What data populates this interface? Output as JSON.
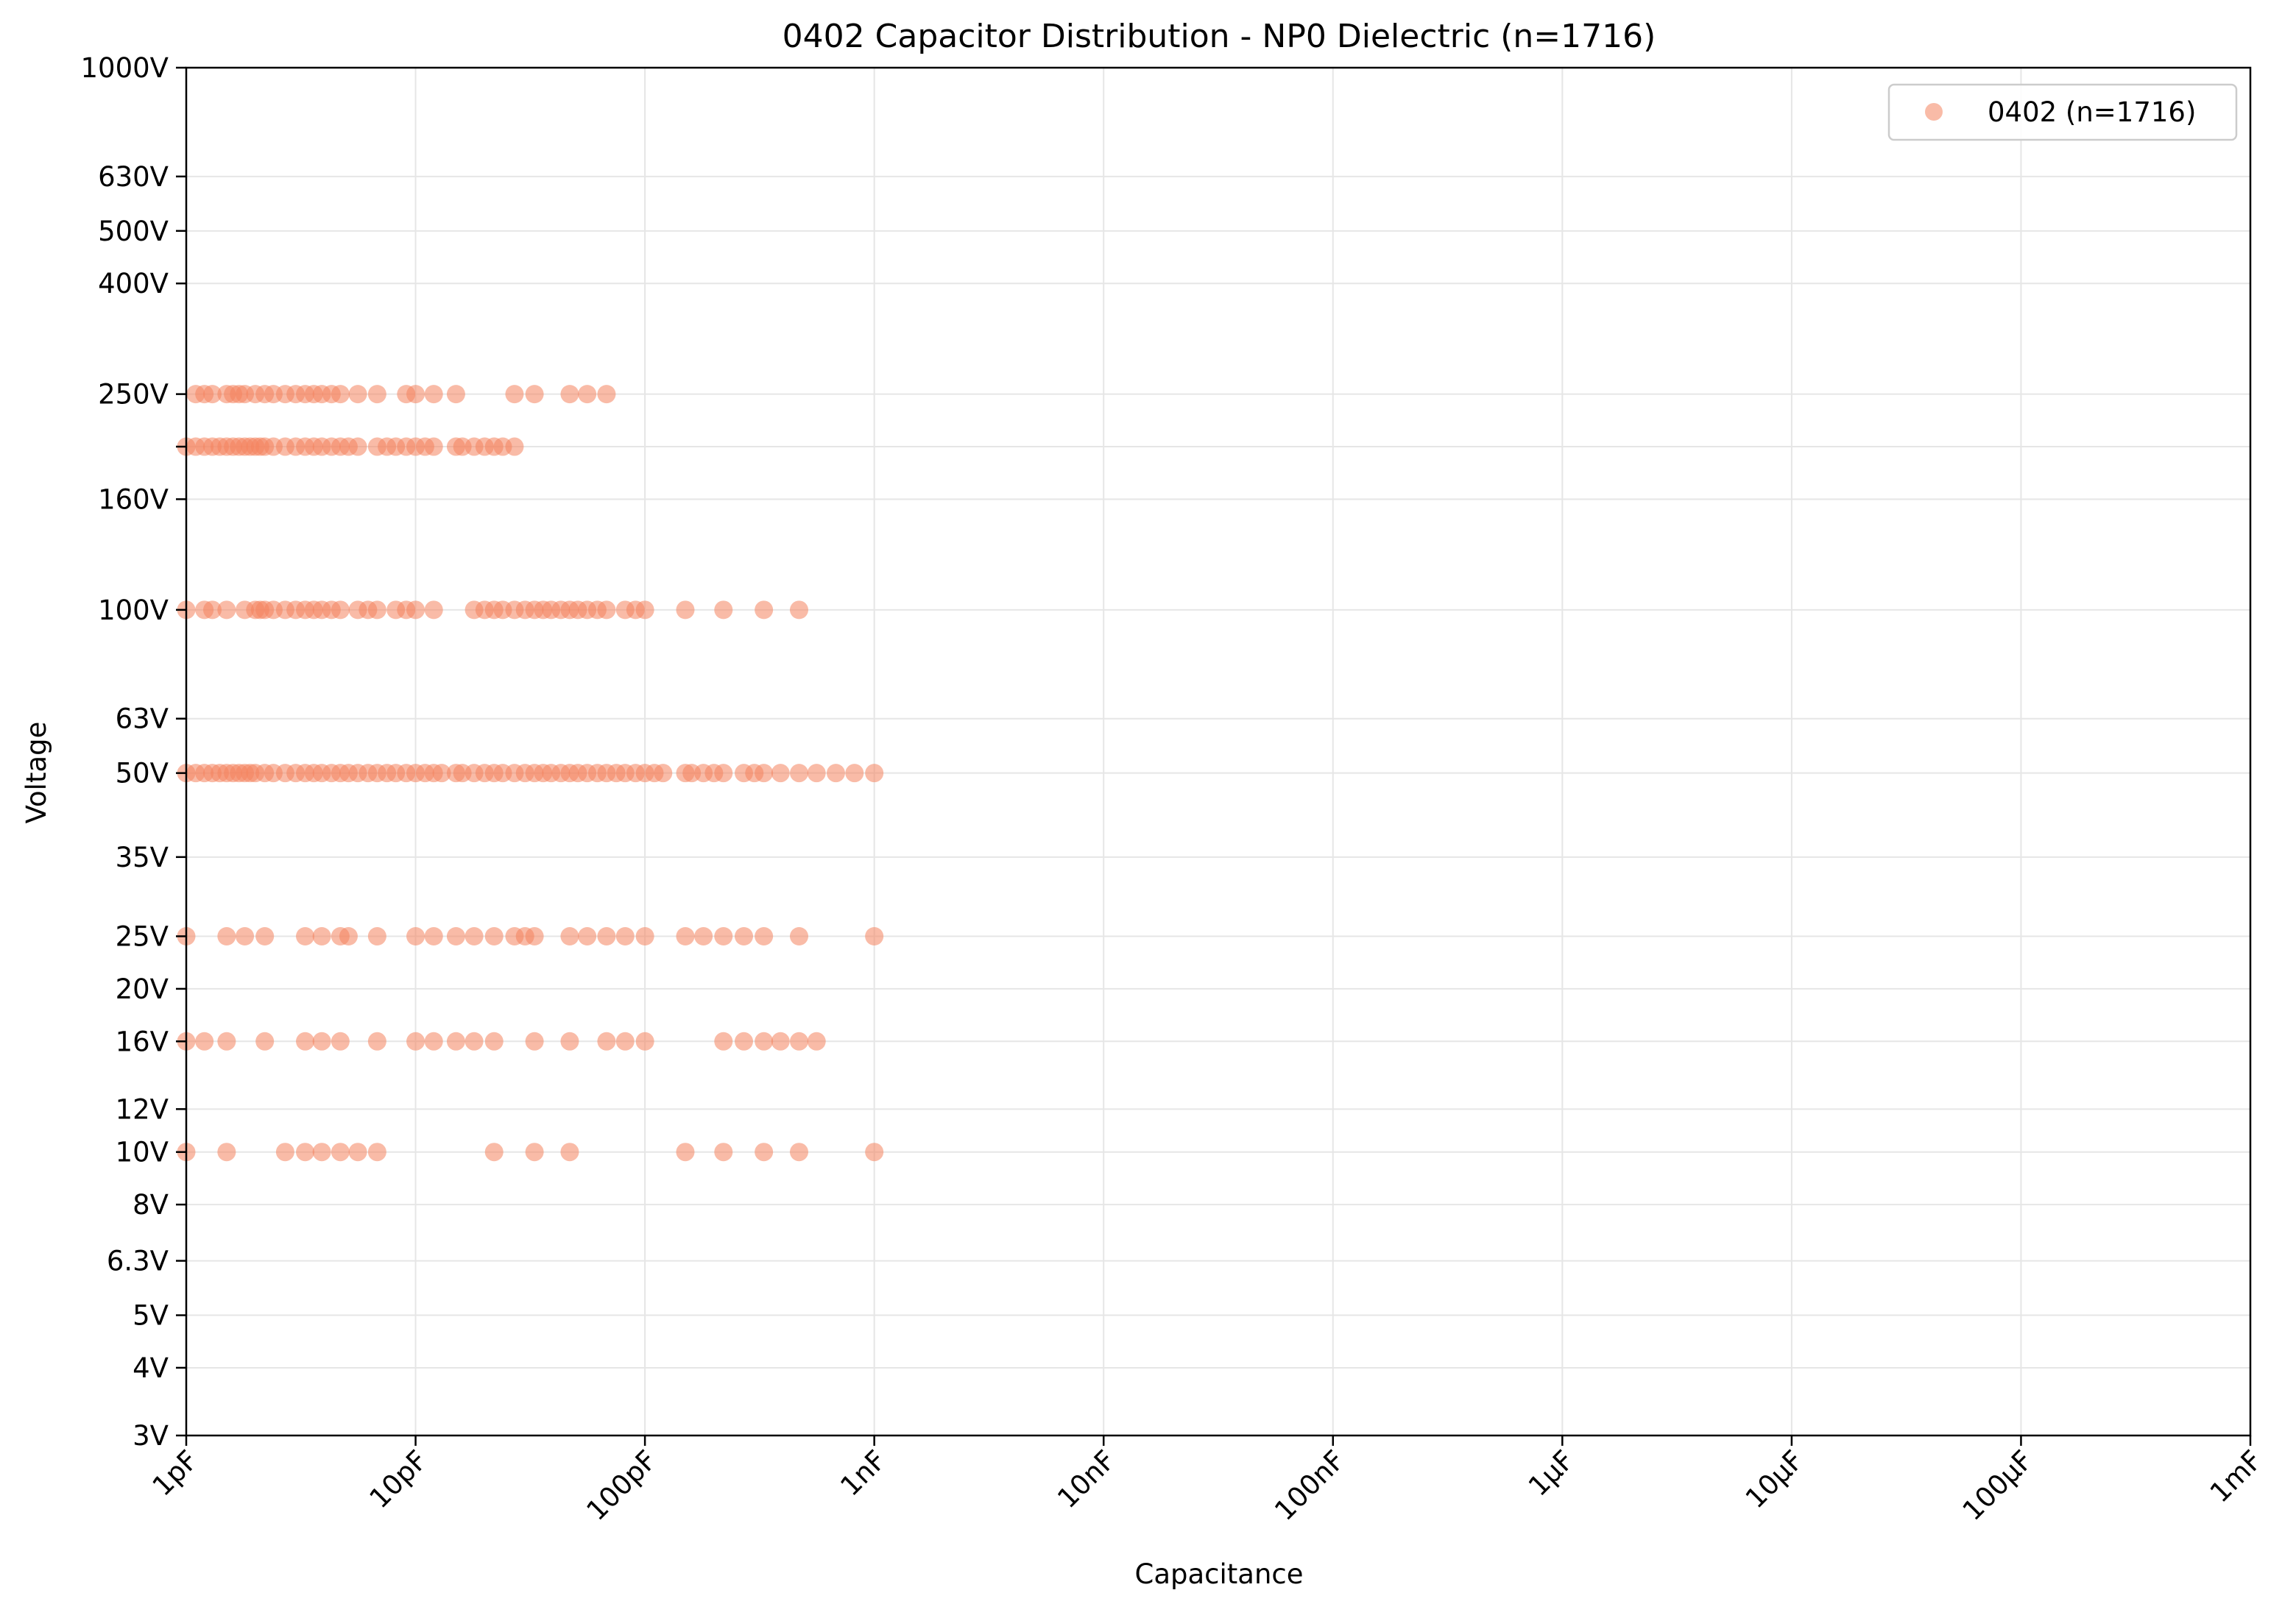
{
  "chart_data": {
    "type": "scatter",
    "title": "0402 Capacitor Distribution - NP0 Dielectric (n=1716)",
    "xlabel": "Capacitance",
    "ylabel": "Voltage",
    "x_scale": "log",
    "y_scale": "log",
    "x_unit": "pF",
    "y_unit": "V",
    "xlim": [
      1,
      1000000000
    ],
    "ylim": [
      3,
      1000
    ],
    "grid": true,
    "legend_position": "top-right",
    "x_ticks": [
      {
        "value": 1,
        "label": "1pF"
      },
      {
        "value": 10,
        "label": "10pF"
      },
      {
        "value": 100,
        "label": "100pF"
      },
      {
        "value": 1000,
        "label": "1nF"
      },
      {
        "value": 10000,
        "label": "10nF"
      },
      {
        "value": 100000,
        "label": "100nF"
      },
      {
        "value": 1000000,
        "label": "1µF"
      },
      {
        "value": 10000000,
        "label": "10µF"
      },
      {
        "value": 100000000,
        "label": "100µF"
      },
      {
        "value": 1000000000,
        "label": "1mF"
      }
    ],
    "y_ticks": [
      {
        "value": 3,
        "label": "3V"
      },
      {
        "value": 4,
        "label": "4V"
      },
      {
        "value": 5,
        "label": "5V"
      },
      {
        "value": 6.3,
        "label": "6.3V"
      },
      {
        "value": 8,
        "label": "8V"
      },
      {
        "value": 10,
        "label": "10V"
      },
      {
        "value": 12,
        "label": "12V"
      },
      {
        "value": 16,
        "label": "16V"
      },
      {
        "value": 20,
        "label": "20V"
      },
      {
        "value": 25,
        "label": "25V"
      },
      {
        "value": 35,
        "label": "35V"
      },
      {
        "value": 50,
        "label": "50V"
      },
      {
        "value": 63,
        "label": "63V"
      },
      {
        "value": 100,
        "label": "100V"
      },
      {
        "value": 160,
        "label": "160V"
      },
      {
        "value": 200,
        "label": ""
      },
      {
        "value": 250,
        "label": "250V"
      },
      {
        "value": 400,
        "label": "400V"
      },
      {
        "value": 500,
        "label": "500V"
      },
      {
        "value": 630,
        "label": "630V"
      },
      {
        "value": 1000,
        "label": "1000V"
      }
    ],
    "series": [
      {
        "name": "0402 (n=1716)",
        "color": "#f4845f",
        "opacity": 0.55,
        "points": [
          {
            "voltage": 250,
            "capacitance_pF": [
              1.1,
              1.2,
              1.3,
              1.5,
              1.6,
              1.7,
              1.8,
              2.0,
              2.2,
              2.4,
              2.7,
              3.0,
              3.3,
              3.6,
              3.9,
              4.3,
              4.7,
              5.6,
              6.8,
              9.1,
              10,
              12,
              15,
              27,
              33,
              47,
              56,
              68
            ]
          },
          {
            "voltage": 200,
            "capacitance_pF": [
              1.0,
              1.1,
              1.2,
              1.3,
              1.4,
              1.5,
              1.6,
              1.7,
              1.8,
              1.9,
              2.0,
              2.1,
              2.2,
              2.4,
              2.7,
              3.0,
              3.3,
              3.6,
              3.9,
              4.3,
              4.7,
              5.1,
              5.6,
              6.8,
              7.5,
              8.2,
              9.1,
              10,
              11,
              12,
              15,
              16,
              18,
              20,
              22,
              24,
              27
            ]
          },
          {
            "voltage": 100,
            "capacitance_pF": [
              1.0,
              1.2,
              1.3,
              1.5,
              1.8,
              2.0,
              2.1,
              2.2,
              2.4,
              2.7,
              3.0,
              3.3,
              3.6,
              3.9,
              4.3,
              4.7,
              5.6,
              6.2,
              6.8,
              8.2,
              9.1,
              10,
              12,
              18,
              20,
              22,
              24,
              27,
              30,
              33,
              36,
              39,
              43,
              47,
              51,
              56,
              62,
              68,
              82,
              91,
              100,
              150,
              220,
              330,
              470
            ]
          },
          {
            "voltage": 50,
            "capacitance_pF": [
              1.0,
              1.1,
              1.2,
              1.3,
              1.4,
              1.5,
              1.6,
              1.7,
              1.8,
              1.9,
              2.0,
              2.2,
              2.4,
              2.7,
              3.0,
              3.3,
              3.6,
              3.9,
              4.3,
              4.7,
              5.1,
              5.6,
              6.2,
              6.8,
              7.5,
              8.2,
              9.1,
              10,
              11,
              12,
              13,
              15,
              16,
              18,
              20,
              22,
              24,
              27,
              30,
              33,
              36,
              39,
              43,
              47,
              51,
              56,
              62,
              68,
              75,
              82,
              91,
              100,
              110,
              120,
              150,
              160,
              180,
              200,
              220,
              270,
              300,
              330,
              390,
              470,
              560,
              680,
              820,
              1000
            ]
          },
          {
            "voltage": 25,
            "capacitance_pF": [
              1.0,
              1.5,
              1.8,
              2.2,
              3.3,
              3.9,
              4.7,
              5.1,
              6.8,
              10,
              12,
              15,
              18,
              22,
              27,
              30,
              33,
              47,
              56,
              68,
              82,
              100,
              150,
              180,
              220,
              270,
              330,
              470,
              1000
            ]
          },
          {
            "voltage": 16,
            "capacitance_pF": [
              1.0,
              1.2,
              1.5,
              2.2,
              3.3,
              3.9,
              4.7,
              6.8,
              10,
              12,
              15,
              18,
              22,
              33,
              47,
              68,
              82,
              100,
              220,
              270,
              330,
              390,
              470,
              560
            ]
          },
          {
            "voltage": 10,
            "capacitance_pF": [
              1.0,
              1.5,
              2.7,
              3.3,
              3.9,
              4.7,
              5.6,
              6.8,
              22,
              33,
              47,
              150,
              220,
              330,
              470,
              1000
            ]
          }
        ]
      }
    ]
  }
}
